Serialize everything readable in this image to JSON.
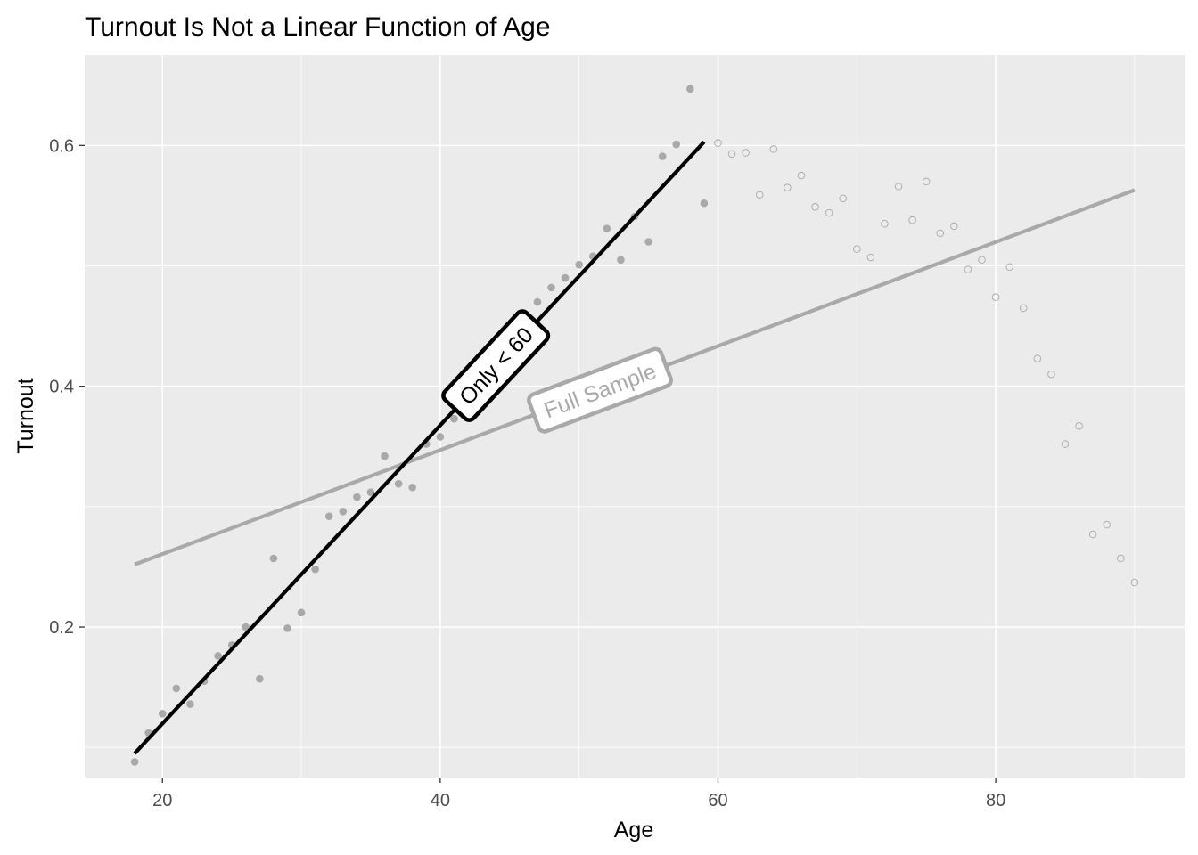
{
  "chart_data": {
    "type": "scatter",
    "title": "Turnout Is Not a Linear Function of Age",
    "xlabel": "Age",
    "ylabel": "Turnout",
    "xlim": [
      14.4,
      93.6
    ],
    "ylim": [
      0.075,
      0.675
    ],
    "x_ticks": [
      20,
      40,
      60,
      80
    ],
    "x_tick_labels": [
      "20",
      "40",
      "60",
      "80"
    ],
    "y_ticks": [
      0.2,
      0.4,
      0.6
    ],
    "y_tick_labels": [
      "0.2",
      "0.4",
      "0.6"
    ],
    "grid": true,
    "background": "#ebebeb",
    "point_color": "#a9a9a9",
    "series": [
      {
        "group": "age under 60 (filled points)",
        "points": [
          [
            18,
            0.088
          ],
          [
            19,
            0.112
          ],
          [
            20,
            0.128
          ],
          [
            21,
            0.149
          ],
          [
            22,
            0.136
          ],
          [
            23,
            0.155
          ],
          [
            24,
            0.176
          ],
          [
            25,
            0.185
          ],
          [
            26,
            0.2
          ],
          [
            27,
            0.157
          ],
          [
            28,
            0.257
          ],
          [
            29,
            0.199
          ],
          [
            30,
            0.212
          ],
          [
            31,
            0.248
          ],
          [
            32,
            0.292
          ],
          [
            33,
            0.296
          ],
          [
            34,
            0.308
          ],
          [
            35,
            0.312
          ],
          [
            36,
            0.342
          ],
          [
            37,
            0.319
          ],
          [
            38,
            0.316
          ],
          [
            39,
            0.352
          ],
          [
            40,
            0.358
          ],
          [
            41,
            0.373
          ],
          [
            42,
            0.403
          ],
          [
            43,
            0.412
          ],
          [
            44,
            0.42
          ],
          [
            45,
            0.441
          ],
          [
            46,
            0.455
          ],
          [
            47,
            0.47
          ],
          [
            48,
            0.482
          ],
          [
            49,
            0.49
          ],
          [
            50,
            0.501
          ],
          [
            51,
            0.508
          ],
          [
            52,
            0.531
          ],
          [
            53,
            0.505
          ],
          [
            54,
            0.541
          ],
          [
            55,
            0.52
          ],
          [
            56,
            0.591
          ],
          [
            57,
            0.601
          ],
          [
            58,
            0.647
          ],
          [
            59,
            0.552
          ]
        ]
      },
      {
        "group": "age 60 and over (hollow points)",
        "points": [
          [
            60,
            0.602
          ],
          [
            61,
            0.593
          ],
          [
            62,
            0.594
          ],
          [
            63,
            0.559
          ],
          [
            64,
            0.597
          ],
          [
            65,
            0.565
          ],
          [
            66,
            0.575
          ],
          [
            67,
            0.549
          ],
          [
            68,
            0.544
          ],
          [
            69,
            0.556
          ],
          [
            70,
            0.514
          ],
          [
            71,
            0.507
          ],
          [
            72,
            0.535
          ],
          [
            73,
            0.566
          ],
          [
            74,
            0.538
          ],
          [
            75,
            0.57
          ],
          [
            76,
            0.527
          ],
          [
            77,
            0.533
          ],
          [
            78,
            0.497
          ],
          [
            79,
            0.505
          ],
          [
            80,
            0.474
          ],
          [
            81,
            0.499
          ],
          [
            82,
            0.465
          ],
          [
            83,
            0.423
          ],
          [
            84,
            0.41
          ],
          [
            85,
            0.352
          ],
          [
            86,
            0.367
          ],
          [
            87,
            0.277
          ],
          [
            88,
            0.285
          ],
          [
            89,
            0.257
          ],
          [
            90,
            0.237
          ]
        ]
      }
    ],
    "fit_lines": [
      {
        "label": "Only < 60",
        "color": "#000000",
        "x": [
          18,
          59
        ],
        "y": [
          0.095,
          0.603
        ],
        "label_at_x": 44
      },
      {
        "label": "Full Sample",
        "color": "#a9a9a9",
        "x": [
          18,
          90
        ],
        "y": [
          0.252,
          0.563
        ],
        "label_at_x": 51.5
      }
    ]
  }
}
